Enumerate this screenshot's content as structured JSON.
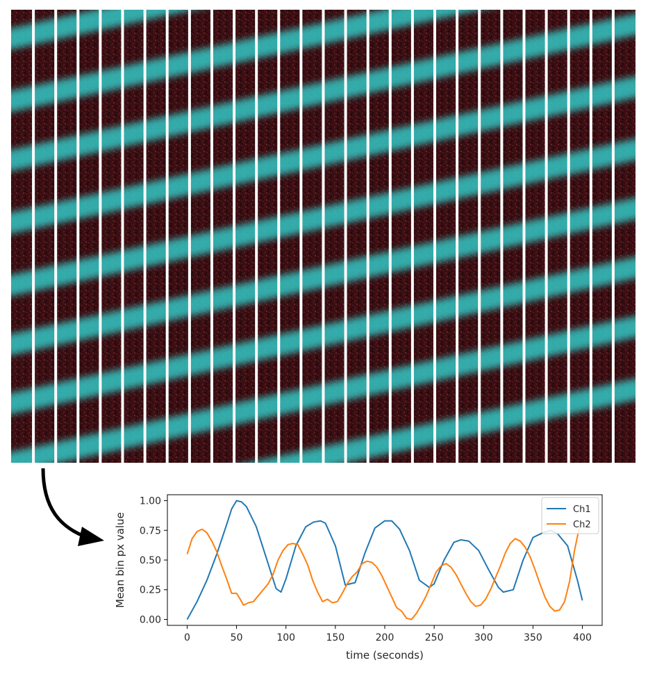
{
  "image": {
    "description_icon": "kymograph-image",
    "background_color": "#3a0e12",
    "band_color": "#33c7c4",
    "separator_color": "#ffffff",
    "bins": 28
  },
  "arrow": {
    "icon": "curved-arrow-icon",
    "color": "#000000"
  },
  "chart_data": {
    "type": "line",
    "title": "",
    "xlabel": "time (seconds)",
    "ylabel": "Mean bin px value",
    "xlim": [
      -20,
      420
    ],
    "ylim": [
      -0.05,
      1.05
    ],
    "xticks": [
      0,
      50,
      100,
      150,
      200,
      250,
      300,
      350,
      400
    ],
    "xtick_labels": [
      "0",
      "50",
      "100",
      "150",
      "200",
      "250",
      "300",
      "350",
      "400"
    ],
    "yticks": [
      0.0,
      0.25,
      0.5,
      0.75,
      1.0
    ],
    "ytick_labels": [
      "0.00",
      "0.25",
      "0.50",
      "0.75",
      "1.00"
    ],
    "grid": false,
    "legend_position": "top-right",
    "series": [
      {
        "name": "Ch1",
        "color": "#1f77b4",
        "x": [
          0,
          10,
          20,
          30,
          40,
          45,
          50,
          55,
          60,
          70,
          80,
          90,
          95,
          100,
          110,
          120,
          128,
          135,
          140,
          150,
          160,
          170,
          180,
          190,
          200,
          207,
          215,
          225,
          235,
          245,
          250,
          260,
          270,
          277,
          285,
          295,
          305,
          315,
          320,
          330,
          340,
          350,
          360,
          368,
          375,
          385,
          395,
          400
        ],
        "y": [
          0.0,
          0.15,
          0.33,
          0.55,
          0.8,
          0.93,
          1.0,
          0.99,
          0.95,
          0.78,
          0.52,
          0.26,
          0.23,
          0.34,
          0.62,
          0.78,
          0.82,
          0.83,
          0.81,
          0.62,
          0.29,
          0.31,
          0.56,
          0.77,
          0.83,
          0.83,
          0.76,
          0.58,
          0.33,
          0.27,
          0.3,
          0.5,
          0.65,
          0.67,
          0.66,
          0.58,
          0.42,
          0.27,
          0.23,
          0.25,
          0.5,
          0.69,
          0.73,
          0.75,
          0.72,
          0.62,
          0.33,
          0.16
        ]
      },
      {
        "name": "Ch2",
        "color": "#ff7f0e",
        "x": [
          0,
          5,
          10,
          15,
          20,
          25,
          30,
          35,
          40,
          45,
          50,
          53,
          57,
          62,
          67,
          72,
          77,
          82,
          87,
          92,
          97,
          102,
          107,
          112,
          117,
          122,
          127,
          132,
          137,
          142,
          147,
          152,
          157,
          162,
          167,
          172,
          177,
          182,
          187,
          192,
          197,
          202,
          207,
          212,
          217,
          222,
          227,
          232,
          237,
          242,
          247,
          252,
          257,
          262,
          267,
          272,
          277,
          282,
          287,
          292,
          297,
          302,
          307,
          312,
          317,
          322,
          327,
          332,
          337,
          342,
          347,
          352,
          357,
          362,
          367,
          372,
          377,
          382,
          387,
          392,
          397
        ],
        "y": [
          0.55,
          0.68,
          0.74,
          0.76,
          0.73,
          0.66,
          0.57,
          0.45,
          0.34,
          0.22,
          0.22,
          0.18,
          0.12,
          0.14,
          0.15,
          0.2,
          0.25,
          0.3,
          0.38,
          0.5,
          0.58,
          0.63,
          0.64,
          0.63,
          0.55,
          0.46,
          0.33,
          0.23,
          0.15,
          0.17,
          0.14,
          0.15,
          0.22,
          0.3,
          0.36,
          0.4,
          0.47,
          0.49,
          0.48,
          0.44,
          0.37,
          0.28,
          0.19,
          0.1,
          0.07,
          0.01,
          0.0,
          0.05,
          0.12,
          0.2,
          0.3,
          0.4,
          0.45,
          0.47,
          0.44,
          0.38,
          0.3,
          0.22,
          0.15,
          0.11,
          0.12,
          0.17,
          0.25,
          0.35,
          0.45,
          0.56,
          0.64,
          0.68,
          0.66,
          0.61,
          0.53,
          0.42,
          0.3,
          0.19,
          0.11,
          0.07,
          0.08,
          0.15,
          0.32,
          0.58,
          0.78
        ]
      }
    ]
  }
}
